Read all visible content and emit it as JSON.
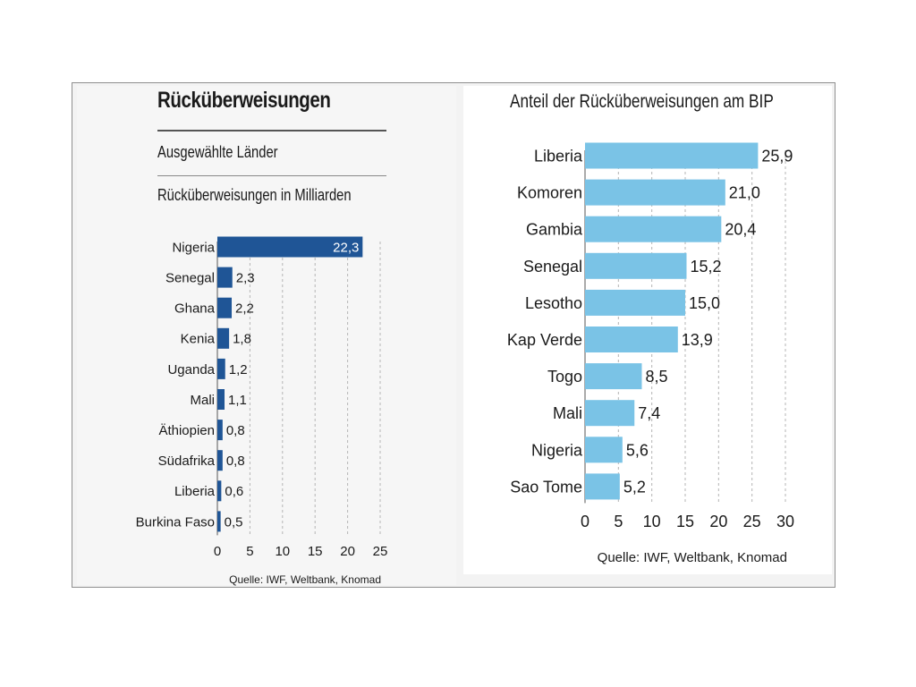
{
  "chart_data": [
    {
      "type": "bar",
      "orientation": "horizontal",
      "title": "Rücküberweisungen",
      "subtitle": "Ausgewählte Länder",
      "xlabel": "Rücküberweisungen in Milliarden",
      "categories": [
        "Nigeria",
        "Senegal",
        "Ghana",
        "Kenia",
        "Uganda",
        "Mali",
        "Äthiopien",
        "Südafrika",
        "Liberia",
        "Burkina Faso"
      ],
      "values": [
        22.3,
        2.3,
        2.2,
        1.8,
        1.2,
        1.1,
        0.8,
        0.8,
        0.6,
        0.5
      ],
      "value_labels": [
        "22,3",
        "2,3",
        "2,2",
        "1,8",
        "1,2",
        "1,1",
        "0,8",
        "0,8",
        "0,6",
        "0,5"
      ],
      "xlim": [
        0,
        25
      ],
      "xticks": [
        0,
        5,
        10,
        15,
        20,
        25
      ],
      "grid": true,
      "color": "#1f5596",
      "source": "Quelle: IWF, Weltbank, Knomad"
    },
    {
      "type": "bar",
      "orientation": "horizontal",
      "title": "Anteil der Rücküberweisungen am BIP",
      "categories": [
        "Liberia",
        "Komoren",
        "Gambia",
        "Senegal",
        "Lesotho",
        "Kap Verde",
        "Togo",
        "Mali",
        "Nigeria",
        "Sao Tome"
      ],
      "values": [
        25.9,
        21.0,
        20.4,
        15.2,
        15.0,
        13.9,
        8.5,
        7.4,
        5.6,
        5.2
      ],
      "value_labels": [
        "25,9",
        "21,0",
        "20,4",
        "15,2",
        "15,0",
        "13,9",
        "8,5",
        "7,4",
        "5,6",
        "5,2"
      ],
      "xlim": [
        0,
        30
      ],
      "xticks": [
        0,
        5,
        10,
        15,
        20,
        25,
        30
      ],
      "grid": true,
      "color": "#7ac3e6",
      "source": "Quelle: IWF, Weltbank, Knomad"
    }
  ]
}
